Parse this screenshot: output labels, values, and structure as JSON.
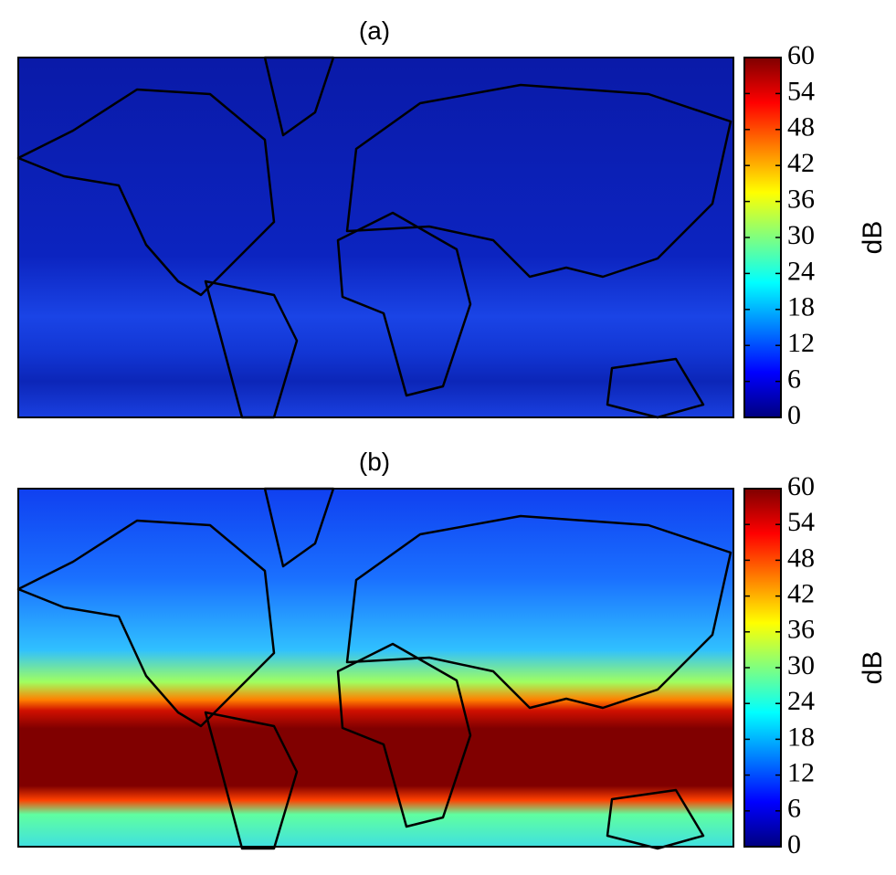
{
  "panels": [
    {
      "title": "(a)",
      "colorbar": {
        "label": "dB",
        "lim": [
          0,
          60
        ],
        "ticks": [
          0,
          6,
          12,
          18,
          24,
          30,
          36,
          42,
          48,
          54,
          60
        ]
      }
    },
    {
      "title": "(b)",
      "colorbar": {
        "label": "dB",
        "lim": [
          0,
          60
        ],
        "ticks": [
          0,
          6,
          12,
          18,
          24,
          30,
          36,
          42,
          48,
          54,
          60
        ]
      }
    }
  ]
}
